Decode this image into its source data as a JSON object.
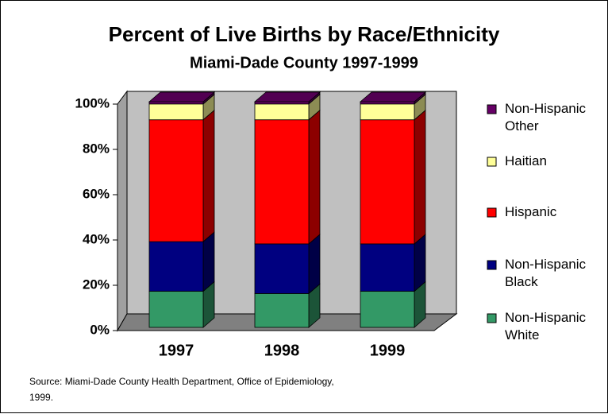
{
  "chart_data": {
    "type": "bar3d_stacked",
    "title": "Percent of Live Births by Race/Ethnicity",
    "subtitle": "Miami-Dade County 1997-1999",
    "categories": [
      "1997",
      "1998",
      "1999"
    ],
    "series": [
      {
        "name": "Non-Hispanic White",
        "color": "#339966",
        "values": [
          16,
          15,
          16
        ]
      },
      {
        "name": "Non-Hispanic Black",
        "color": "#000080",
        "values": [
          22,
          22,
          21
        ]
      },
      {
        "name": "Hispanic",
        "color": "#ff0000",
        "values": [
          54,
          55,
          55
        ]
      },
      {
        "name": "Haitian",
        "color": "#ffff99",
        "values": [
          7,
          7,
          7
        ]
      },
      {
        "name": "Non-Hispanic Other",
        "color": "#660066",
        "values": [
          1,
          1,
          1
        ]
      }
    ],
    "ylim": [
      0,
      100
    ],
    "yticks": [
      {
        "value": 0,
        "label": "0%"
      },
      {
        "value": 20,
        "label": "20%"
      },
      {
        "value": 40,
        "label": "40%"
      },
      {
        "value": 60,
        "label": "60%"
      },
      {
        "value": 80,
        "label": "80%"
      },
      {
        "value": 100,
        "label": "100%"
      }
    ],
    "legend": "right",
    "source": "Source: Miami-Dade County Health Department, Office of Epidemiology, 1999."
  }
}
